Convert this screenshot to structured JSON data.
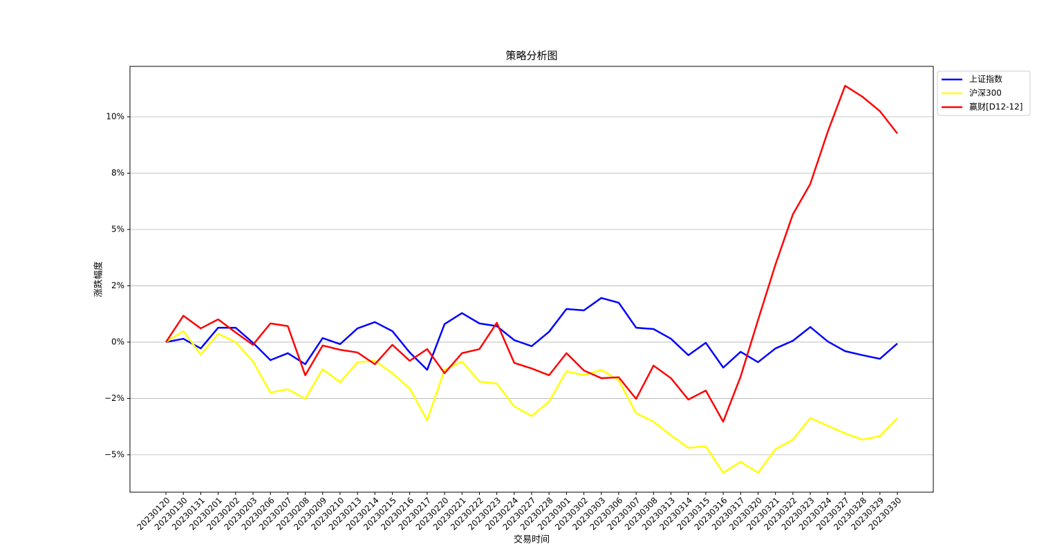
{
  "chart_data": {
    "type": "line",
    "title": "策略分析图",
    "xlabel": "交易时间",
    "ylabel": "涨跌幅度",
    "categories": [
      "20230120",
      "20230130",
      "20230131",
      "20230201",
      "20230202",
      "20230203",
      "20230206",
      "20230207",
      "20230208",
      "20230209",
      "20230210",
      "20230213",
      "20230214",
      "20230215",
      "20230216",
      "20230217",
      "20230220",
      "20230221",
      "20230222",
      "20230223",
      "20230224",
      "20230227",
      "20230228",
      "20230301",
      "20230302",
      "20230303",
      "20230306",
      "20230307",
      "20230308",
      "20230313",
      "20230314",
      "20230315",
      "20230316",
      "20230317",
      "20230320",
      "20230321",
      "20230322",
      "20230323",
      "20230324",
      "20230327",
      "20230328",
      "20230329",
      "20230330"
    ],
    "series": [
      {
        "name": "上证指数",
        "color": "#0000ff",
        "values": [
          0,
          0.15,
          -0.28,
          0.64,
          0.64,
          -0.03,
          -0.8,
          -0.49,
          -0.98,
          0.18,
          -0.09,
          0.61,
          0.89,
          0.49,
          -0.46,
          -1.23,
          0.8,
          1.29,
          0.83,
          0.71,
          0.09,
          -0.18,
          0.46,
          1.47,
          1.41,
          1.96,
          1.75,
          0.64,
          0.58,
          0.15,
          -0.58,
          -0.03,
          -1.13,
          -0.43,
          -0.89,
          -0.28,
          0.06,
          0.67,
          0.03,
          -0.4,
          -0.58,
          -0.74,
          -0.06
        ]
      },
      {
        "name": "沪深300",
        "color": "#ffff00",
        "values": [
          0,
          0.49,
          -0.55,
          0.37,
          0,
          -0.86,
          -2.24,
          -2.09,
          -2.52,
          -1.2,
          -1.78,
          -0.89,
          -0.83,
          -1.38,
          -2.06,
          -3.47,
          -1.23,
          -0.86,
          -1.75,
          -1.84,
          -2.85,
          -3.28,
          -2.64,
          -1.29,
          -1.47,
          -1.23,
          -1.69,
          -3.16,
          -3.53,
          -4.14,
          -4.69,
          -4.63,
          -5.8,
          -5.31,
          -5.8,
          -4.75,
          -4.33,
          -3.37,
          -3.71,
          -4.05,
          -4.33,
          -4.17,
          -3.37
        ]
      },
      {
        "name": "赢财[D12-12]",
        "color": "#ff0000",
        "values": [
          0,
          1.17,
          0.61,
          1.01,
          0.43,
          -0.12,
          0.83,
          0.71,
          -1.47,
          -0.15,
          -0.34,
          -0.46,
          -0.98,
          -0.12,
          -0.83,
          -0.31,
          -1.38,
          -0.49,
          -0.31,
          0.86,
          -0.92,
          -1.17,
          -1.47,
          -0.49,
          -1.26,
          -1.6,
          -1.56,
          -2.52,
          -1.04,
          -1.6,
          -2.55,
          -2.15,
          -3.53,
          -1.53,
          0.98,
          3.44,
          5.67,
          7.02,
          9.33,
          11.38,
          10.89,
          10.25,
          9.26
        ]
      }
    ],
    "ylim": [
      -6.66,
      12.24
    ],
    "yticks": [
      {
        "value": -5,
        "label": "−5%"
      },
      {
        "value": -2.5,
        "label": "−2%"
      },
      {
        "value": 0,
        "label": "0%"
      },
      {
        "value": 2.5,
        "label": "2%"
      },
      {
        "value": 5,
        "label": "5%"
      },
      {
        "value": 7.5,
        "label": "8%"
      },
      {
        "value": 10,
        "label": "10%"
      }
    ],
    "grid": true,
    "legend": "outside upper right"
  }
}
